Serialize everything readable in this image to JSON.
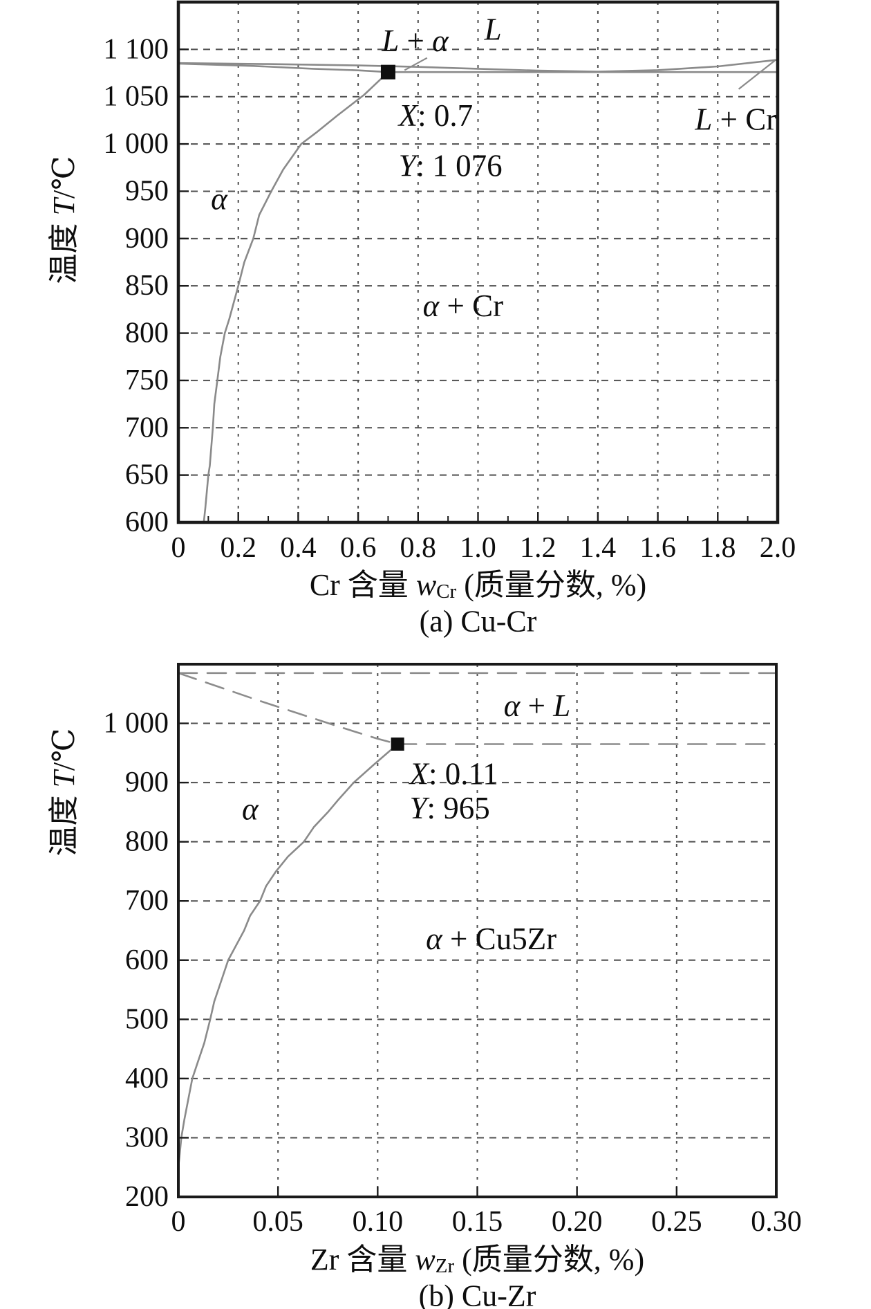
{
  "figure": {
    "background": "#ffffff",
    "colors": {
      "frame": "#1a1a1a",
      "grid": "#4f4f4f",
      "curve": "#8a8a8a",
      "dash_line": "#8c8c8c",
      "marker": "#0f0f0f",
      "text": "#0d0d0d"
    }
  },
  "chart_data": [
    {
      "id": "cu-cr",
      "type": "line",
      "caption": "(a) Cu-Cr",
      "xlabel_segments": [
        {
          "t": "Cr 含量 ",
          "i": 0
        },
        {
          "t": "w",
          "i": 1
        },
        {
          "t": "Cr",
          "i": 0,
          "sub": 1
        },
        {
          "t": " (质量分数, %)",
          "i": 0
        }
      ],
      "ylabel_segments": [
        {
          "t": "温度 ",
          "i": 0
        },
        {
          "t": "T",
          "i": 1
        },
        {
          "t": "/℃",
          "i": 0
        }
      ],
      "xlim": [
        0,
        2.0
      ],
      "ylim": [
        600,
        1150
      ],
      "xticks": [
        {
          "v": 0,
          "label": "0"
        },
        {
          "v": 0.2,
          "label": "0.2"
        },
        {
          "v": 0.4,
          "label": "0.4"
        },
        {
          "v": 0.6,
          "label": "0.6"
        },
        {
          "v": 0.8,
          "label": "0.8"
        },
        {
          "v": 1.0,
          "label": "1.0"
        },
        {
          "v": 1.2,
          "label": "1.2"
        },
        {
          "v": 1.4,
          "label": "1.4"
        },
        {
          "v": 1.6,
          "label": "1.6"
        },
        {
          "v": 1.8,
          "label": "1.8"
        },
        {
          "v": 2.0,
          "label": "2.0"
        }
      ],
      "xminor_step": 0.1,
      "yticks": [
        {
          "v": 1100,
          "label": "1 100"
        },
        {
          "v": 1050,
          "label": "1 050"
        },
        {
          "v": 1000,
          "label": "1 000"
        },
        {
          "v": 950,
          "label": "950"
        },
        {
          "v": 900,
          "label": "900"
        },
        {
          "v": 850,
          "label": "850"
        },
        {
          "v": 800,
          "label": "800"
        },
        {
          "v": 750,
          "label": "750"
        },
        {
          "v": 700,
          "label": "700"
        },
        {
          "v": 650,
          "label": "650"
        },
        {
          "v": 600,
          "label": "600"
        }
      ],
      "grid_x": [
        0.2,
        0.4,
        0.6,
        0.8,
        1.0,
        1.2,
        1.4,
        1.6,
        1.8
      ],
      "grid_y": [
        650,
        700,
        750,
        800,
        850,
        900,
        950,
        1000,
        1050,
        1100
      ],
      "series": [
        {
          "name": "liquidus",
          "style": "solid",
          "points": [
            [
              0,
              1085.5
            ],
            [
              0.3,
              1084.5
            ],
            [
              0.6,
              1083
            ],
            [
              0.8,
              1081.5
            ],
            [
              1.0,
              1079.5
            ],
            [
              1.2,
              1077.5
            ],
            [
              1.4,
              1076.5
            ],
            [
              1.6,
              1078
            ],
            [
              1.8,
              1082
            ],
            [
              2.0,
              1089
            ]
          ]
        },
        {
          "name": "solidus",
          "style": "solid",
          "points": [
            [
              0,
              1085
            ],
            [
              0.25,
              1082.5
            ],
            [
              0.45,
              1079.5
            ],
            [
              0.6,
              1077.8
            ],
            [
              0.7,
              1076
            ]
          ]
        },
        {
          "name": "eutectic-line",
          "style": "solid",
          "points": [
            [
              0.7,
              1076
            ],
            [
              2.0,
              1076
            ]
          ]
        },
        {
          "name": "alpha-solvus",
          "style": "solid",
          "points": [
            [
              0.7,
              1076
            ],
            [
              0.62,
              1052
            ],
            [
              0.53,
              1030
            ],
            [
              0.46,
              1012
            ],
            [
              0.41,
              1000
            ],
            [
              0.35,
              973
            ],
            [
              0.31,
              950
            ],
            [
              0.27,
              925
            ],
            [
              0.25,
              900
            ],
            [
              0.22,
              875
            ],
            [
              0.2,
              850
            ],
            [
              0.17,
              815
            ],
            [
              0.155,
              800
            ],
            [
              0.14,
              775
            ],
            [
              0.13,
              750
            ],
            [
              0.12,
              725
            ],
            [
              0.115,
              700
            ],
            [
              0.105,
              660
            ],
            [
              0.1,
              650
            ],
            [
              0.09,
              615
            ],
            [
              0.085,
              600
            ]
          ]
        }
      ],
      "marker": {
        "x": 0.7,
        "y": 1076,
        "label_x": "X: 0.7",
        "label_y": "Y: 1 076"
      },
      "labels": [
        {
          "name": "region-L-alpha",
          "x": 0.79,
          "y": 1109,
          "anchor": "middle",
          "segments": [
            {
              "t": "L",
              "i": 1
            },
            {
              "t": " + ",
              "i": 0
            },
            {
              "t": "α",
              "i": 1
            }
          ]
        },
        {
          "name": "region-L",
          "x": 1.05,
          "y": 1121,
          "anchor": "middle",
          "segments": [
            {
              "t": "L",
              "i": 1
            }
          ]
        },
        {
          "name": "region-L-Cr",
          "x": 1.86,
          "y": 1026,
          "anchor": "middle",
          "segments": [
            {
              "t": "L",
              "i": 1
            },
            {
              "t": " + Cr",
              "i": 0
            }
          ]
        },
        {
          "name": "region-alpha",
          "x": 0.136,
          "y": 942,
          "anchor": "middle",
          "segments": [
            {
              "t": "α",
              "i": 1
            }
          ]
        },
        {
          "name": "region-alpha-Cr",
          "x": 0.95,
          "y": 829,
          "anchor": "middle",
          "segments": [
            {
              "t": "α",
              "i": 1
            },
            {
              "t": " + Cr",
              "i": 0
            }
          ]
        },
        {
          "name": "marker-x-value",
          "x": 0.735,
          "y": 1030,
          "anchor": "start",
          "segments": [
            {
              "t": "X",
              "i": 1
            },
            {
              "t": ": 0.7",
              "i": 0
            }
          ]
        },
        {
          "name": "marker-y-value",
          "x": 0.735,
          "y": 977,
          "anchor": "start",
          "segments": [
            {
              "t": "Y",
              "i": 1
            },
            {
              "t": ": 1 076",
              "i": 0
            }
          ]
        }
      ],
      "leaders": [
        {
          "name": "leader-L-alpha",
          "x1": 0.83,
          "y1": 1091,
          "x2": 0.755,
          "y2": 1078
        },
        {
          "name": "leader-L-Cr",
          "x1": 1.87,
          "y1": 1058,
          "x2": 1.99,
          "y2": 1088
        }
      ]
    },
    {
      "id": "cu-zr",
      "type": "line",
      "caption": "(b) Cu-Zr",
      "xlabel_segments": [
        {
          "t": "Zr 含量 ",
          "i": 0
        },
        {
          "t": "w",
          "i": 1
        },
        {
          "t": "Zr",
          "i": 0,
          "sub": 1
        },
        {
          "t": " (质量分数, %)",
          "i": 0
        }
      ],
      "ylabel_segments": [
        {
          "t": "温度 ",
          "i": 0
        },
        {
          "t": "T",
          "i": 1
        },
        {
          "t": "/℃",
          "i": 0
        }
      ],
      "xlim": [
        0,
        0.3
      ],
      "ylim": [
        200,
        1100
      ],
      "xticks": [
        {
          "v": 0,
          "label": "0"
        },
        {
          "v": 0.05,
          "label": "0.05"
        },
        {
          "v": 0.1,
          "label": "0.10"
        },
        {
          "v": 0.15,
          "label": "0.15"
        },
        {
          "v": 0.2,
          "label": "0.20"
        },
        {
          "v": 0.25,
          "label": "0.25"
        },
        {
          "v": 0.3,
          "label": "0.30"
        }
      ],
      "xminor_step": 0,
      "yticks": [
        {
          "v": 1000,
          "label": "1 000"
        },
        {
          "v": 900,
          "label": "900"
        },
        {
          "v": 800,
          "label": "800"
        },
        {
          "v": 700,
          "label": "700"
        },
        {
          "v": 600,
          "label": "600"
        },
        {
          "v": 500,
          "label": "500"
        },
        {
          "v": 400,
          "label": "400"
        },
        {
          "v": 300,
          "label": "300"
        },
        {
          "v": 200,
          "label": "200"
        }
      ],
      "grid_x": [
        0.05,
        0.1,
        0.15,
        0.2,
        0.25
      ],
      "grid_y": [
        300,
        400,
        500,
        600,
        700,
        800,
        900,
        1000
      ],
      "series": [
        {
          "name": "cu-melting-line",
          "style": "dash",
          "points": [
            [
              0,
              1085
            ],
            [
              0.3,
              1085
            ]
          ]
        },
        {
          "name": "liquidus",
          "style": "dash",
          "points": [
            [
              0,
              1085
            ],
            [
              0.02,
              1062
            ],
            [
              0.04,
              1039
            ],
            [
              0.06,
              1017
            ],
            [
              0.08,
              995
            ],
            [
              0.1,
              974
            ],
            [
              0.11,
              965
            ]
          ]
        },
        {
          "name": "eutectic-line",
          "style": "dash",
          "points": [
            [
              0.11,
              965
            ],
            [
              0.3,
              965
            ]
          ]
        },
        {
          "name": "alpha-solvus",
          "style": "solid",
          "points": [
            [
              0.11,
              965
            ],
            [
              0.098,
              930
            ],
            [
              0.088,
              900
            ],
            [
              0.08,
              870
            ],
            [
              0.075,
              850
            ],
            [
              0.068,
              825
            ],
            [
              0.063,
              800
            ],
            [
              0.055,
              775
            ],
            [
              0.049,
              750
            ],
            [
              0.044,
              725
            ],
            [
              0.041,
              700
            ],
            [
              0.036,
              675
            ],
            [
              0.033,
              650
            ],
            [
              0.029,
              625
            ],
            [
              0.025,
              600
            ],
            [
              0.021,
              560
            ],
            [
              0.018,
              530
            ],
            [
              0.016,
              500
            ],
            [
              0.013,
              460
            ],
            [
              0.01,
              430
            ],
            [
              0.007,
              400
            ],
            [
              0.005,
              365
            ],
            [
              0.003,
              330
            ],
            [
              0.0015,
              300
            ],
            [
              0.0005,
              265
            ],
            [
              0,
              250
            ]
          ]
        }
      ],
      "marker": {
        "x": 0.11,
        "y": 965,
        "label_x": "X: 0.11",
        "label_y": "Y: 965"
      },
      "labels": [
        {
          "name": "region-alpha-L",
          "x": 0.18,
          "y": 1030,
          "anchor": "middle",
          "segments": [
            {
              "t": "α",
              "i": 1
            },
            {
              "t": " + ",
              "i": 0
            },
            {
              "t": "L",
              "i": 1
            }
          ]
        },
        {
          "name": "region-alpha",
          "x": 0.036,
          "y": 855,
          "anchor": "middle",
          "segments": [
            {
              "t": "α",
              "i": 1
            }
          ]
        },
        {
          "name": "region-alpha-Cu5Zr",
          "x": 0.157,
          "y": 636,
          "anchor": "middle",
          "segments": [
            {
              "t": "α",
              "i": 1
            },
            {
              "t": " + Cu5Zr",
              "i": 0
            }
          ]
        },
        {
          "name": "marker-x-value",
          "x": 0.116,
          "y": 915,
          "anchor": "start",
          "segments": [
            {
              "t": "X",
              "i": 1
            },
            {
              "t": ": 0.11",
              "i": 0
            }
          ]
        },
        {
          "name": "marker-y-value",
          "x": 0.116,
          "y": 857,
          "anchor": "start",
          "segments": [
            {
              "t": "Y",
              "i": 1
            },
            {
              "t": ": 965",
              "i": 0
            }
          ]
        }
      ],
      "leaders": []
    }
  ]
}
